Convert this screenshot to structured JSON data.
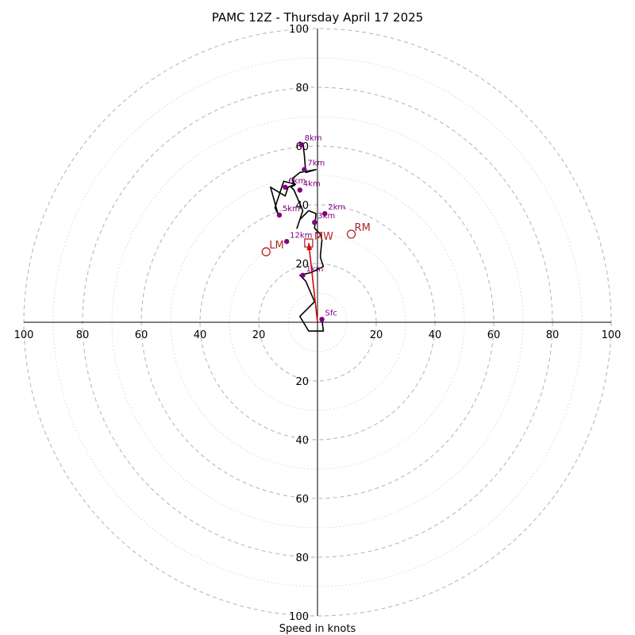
{
  "chart_data": {
    "type": "hodograph",
    "title": "PAMC 12Z - Thursday April 17 2025",
    "xlabel": "Speed in knots",
    "axis_range": [
      -100,
      100
    ],
    "ring_step": 10,
    "tick_labels": {
      "right": [
        "20",
        "40",
        "60",
        "80",
        "100"
      ],
      "left": [
        "20",
        "40",
        "60",
        "80",
        "100"
      ],
      "up": [
        "20",
        "40",
        "60",
        "80",
        "100"
      ],
      "down": [
        "20",
        "40",
        "60",
        "80",
        "100"
      ]
    },
    "trace": [
      [
        1.5,
        1
      ],
      [
        2,
        -3
      ],
      [
        -3,
        -3
      ],
      [
        -6,
        2
      ],
      [
        -1,
        7
      ],
      [
        -4,
        14
      ],
      [
        -6,
        16
      ],
      [
        -2,
        17
      ],
      [
        2,
        19
      ],
      [
        1,
        22
      ],
      [
        1,
        23
      ],
      [
        1.5,
        28
      ],
      [
        1,
        30
      ],
      [
        -1,
        32
      ],
      [
        -0.5,
        37
      ],
      [
        -3,
        38
      ],
      [
        -5,
        36
      ],
      [
        -6,
        35
      ],
      [
        -7,
        32
      ],
      [
        -5,
        38
      ],
      [
        -8,
        45
      ],
      [
        -9,
        46
      ],
      [
        -7.5,
        47
      ],
      [
        -11.5,
        48
      ],
      [
        -14.5,
        39
      ],
      [
        -13,
        36
      ],
      [
        -13.5,
        37
      ],
      [
        -16,
        46
      ],
      [
        -11,
        43
      ],
      [
        -10,
        46
      ],
      [
        -7.5,
        47
      ],
      [
        -8,
        46.5
      ],
      [
        -8.5,
        49
      ],
      [
        -6,
        51
      ],
      [
        -0.5,
        52
      ],
      [
        -4,
        51
      ],
      [
        -4.5,
        57
      ],
      [
        -5,
        61
      ],
      [
        -6,
        60
      ],
      [
        -6,
        61.5
      ]
    ],
    "height_markers": [
      {
        "label": "Sfc",
        "u": 1.5,
        "v": 1
      },
      {
        "label": "1km",
        "u": -5,
        "v": 16
      },
      {
        "label": "2km",
        "u": 2.5,
        "v": 37
      },
      {
        "label": "3km",
        "u": -1,
        "v": 34
      },
      {
        "label": "4km",
        "u": -6,
        "v": 45
      },
      {
        "label": "5km",
        "u": -13,
        "v": 36.5
      },
      {
        "label": "6km",
        "u": -11,
        "v": 46
      },
      {
        "label": "7km",
        "u": -4.5,
        "v": 52
      },
      {
        "label": "8km",
        "u": -5.5,
        "v": 60.5
      },
      {
        "label": "12km",
        "u": -10.5,
        "v": 27.5
      }
    ],
    "motion_markers": [
      {
        "label": "RM",
        "u": 11.5,
        "v": 30,
        "shape": "circle"
      },
      {
        "label": "LM",
        "u": -17.5,
        "v": 24,
        "shape": "circle"
      },
      {
        "label": "MW",
        "u": -3,
        "v": 27,
        "shape": "square"
      }
    ],
    "storm_vector": {
      "from": [
        0,
        0
      ],
      "to": [
        -3,
        27
      ]
    },
    "colors": {
      "trace": "#000000",
      "height_marker": "#800080",
      "motion": "#b22222",
      "arrow": "#e00000",
      "grid": "#b8b8b8"
    }
  }
}
